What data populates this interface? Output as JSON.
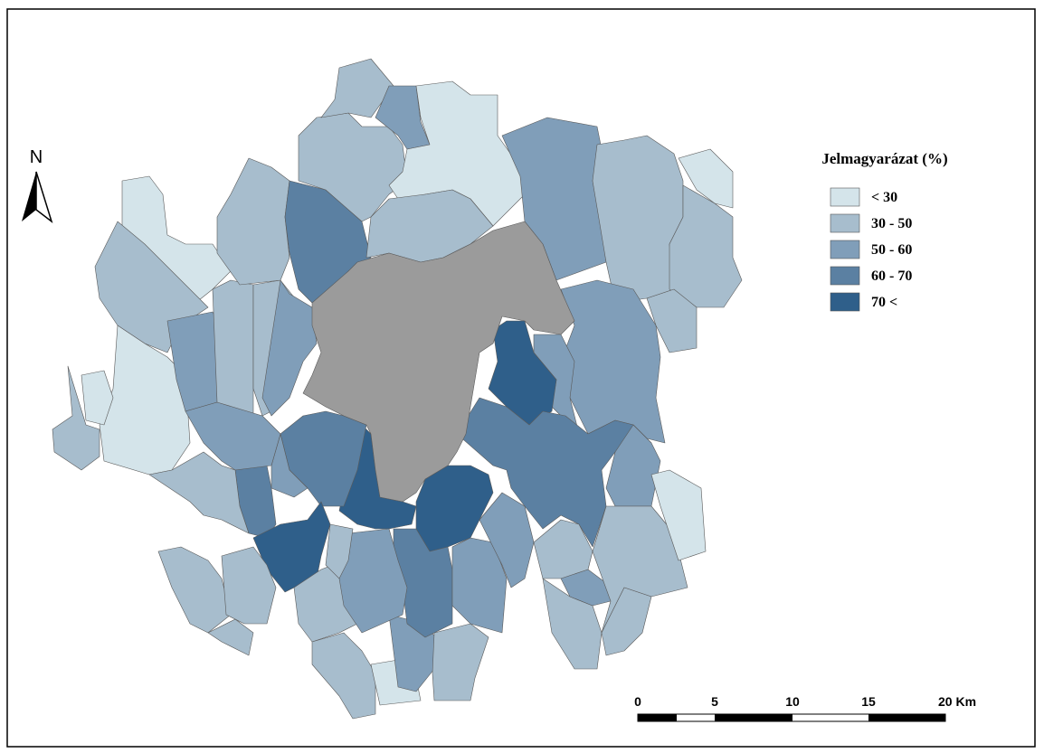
{
  "north_arrow": {
    "label": "N"
  },
  "legend": {
    "title": "Jelmagyarázat (%)",
    "items": [
      {
        "label": "< 30",
        "color": "#d4e4ea"
      },
      {
        "label": "30 - 50",
        "color": "#a7bdcd"
      },
      {
        "label": "50 - 60",
        "color": "#809eb9"
      },
      {
        "label": "60 - 70",
        "color": "#5b80a2"
      },
      {
        "label": "70 <",
        "color": "#2f5f8a"
      }
    ]
  },
  "scale_bar": {
    "labels": [
      "0",
      "5",
      "10",
      "15",
      "20 Km"
    ]
  }
}
